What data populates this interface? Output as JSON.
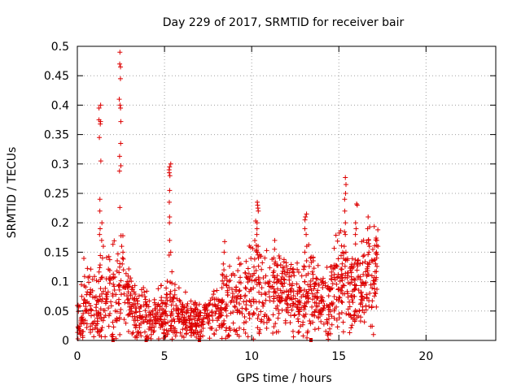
{
  "chart_data": {
    "type": "scatter",
    "title": "Day 229 of 2017, SRMTID for receiver bair",
    "xlabel": "GPS time / hours",
    "ylabel": "SRMTID / TECUs",
    "xlim": [
      0,
      24
    ],
    "ylim": [
      0,
      0.5
    ],
    "xticks": [
      0,
      5,
      10,
      15,
      20
    ],
    "xtick_labels": [
      "0",
      "5",
      "10",
      "15",
      "20"
    ],
    "yticks": [
      0,
      0.05,
      0.1,
      0.15,
      0.2,
      0.25,
      0.3,
      0.35,
      0.4,
      0.45,
      0.5
    ],
    "ytick_labels": [
      "0",
      "0.05",
      "0.1",
      "0.15",
      "0.2",
      "0.25",
      "0.3",
      "0.35",
      "0.4",
      "0.45",
      "0.5"
    ],
    "grid": true,
    "marker": "+",
    "color": "#dd0000",
    "data_end_hours": 17.2,
    "gap_markers_x": [
      2.05,
      3.95,
      7.0,
      13.4
    ],
    "envelope": [
      {
        "x": 0.0,
        "base": 0.02,
        "spread": 0.03
      },
      {
        "x": 0.3,
        "base": 0.05,
        "spread": 0.06
      },
      {
        "x": 0.6,
        "base": 0.07,
        "spread": 0.05
      },
      {
        "x": 1.0,
        "base": 0.04,
        "spread": 0.04
      },
      {
        "x": 1.3,
        "base": 0.06,
        "spread": 0.05
      },
      {
        "x": 1.7,
        "base": 0.08,
        "spread": 0.06
      },
      {
        "x": 2.2,
        "base": 0.07,
        "spread": 0.06
      },
      {
        "x": 2.7,
        "base": 0.09,
        "spread": 0.06
      },
      {
        "x": 3.2,
        "base": 0.05,
        "spread": 0.04
      },
      {
        "x": 4.0,
        "base": 0.04,
        "spread": 0.03
      },
      {
        "x": 5.0,
        "base": 0.04,
        "spread": 0.04
      },
      {
        "x": 5.5,
        "base": 0.05,
        "spread": 0.04
      },
      {
        "x": 6.5,
        "base": 0.035,
        "spread": 0.025
      },
      {
        "x": 7.5,
        "base": 0.04,
        "spread": 0.03
      },
      {
        "x": 8.3,
        "base": 0.06,
        "spread": 0.05
      },
      {
        "x": 9.5,
        "base": 0.07,
        "spread": 0.05
      },
      {
        "x": 10.3,
        "base": 0.09,
        "spread": 0.07
      },
      {
        "x": 11.0,
        "base": 0.08,
        "spread": 0.05
      },
      {
        "x": 12.0,
        "base": 0.09,
        "spread": 0.05
      },
      {
        "x": 12.7,
        "base": 0.06,
        "spread": 0.04
      },
      {
        "x": 13.3,
        "base": 0.09,
        "spread": 0.06
      },
      {
        "x": 14.0,
        "base": 0.06,
        "spread": 0.04
      },
      {
        "x": 14.8,
        "base": 0.08,
        "spread": 0.06
      },
      {
        "x": 15.5,
        "base": 0.09,
        "spread": 0.06
      },
      {
        "x": 16.2,
        "base": 0.08,
        "spread": 0.06
      },
      {
        "x": 17.2,
        "base": 0.11,
        "spread": 0.06
      }
    ],
    "spikes": [
      {
        "x": 1.3,
        "values": [
          0.4,
          0.395,
          0.375,
          0.372,
          0.368,
          0.345,
          0.305,
          0.24,
          0.22,
          0.19,
          0.18
        ]
      },
      {
        "x": 1.45,
        "values": [
          0.2,
          0.17,
          0.16,
          0.14
        ]
      },
      {
        "x": 2.45,
        "values": [
          0.49,
          0.47,
          0.465,
          0.445,
          0.41,
          0.4,
          0.395,
          0.372,
          0.335,
          0.313,
          0.297,
          0.288,
          0.226,
          0.178
        ]
      },
      {
        "x": 2.6,
        "values": [
          0.178,
          0.16,
          0.15,
          0.14,
          0.13,
          0.12
        ]
      },
      {
        "x": 5.3,
        "values": [
          0.3,
          0.295,
          0.29,
          0.285,
          0.28,
          0.255,
          0.235,
          0.21,
          0.2,
          0.17,
          0.15,
          0.145
        ]
      },
      {
        "x": 8.4,
        "values": [
          0.168,
          0.15,
          0.13,
          0.12
        ]
      },
      {
        "x": 10.35,
        "values": [
          0.235,
          0.23,
          0.225,
          0.22,
          0.2,
          0.19,
          0.18,
          0.16,
          0.15,
          0.14
        ]
      },
      {
        "x": 11.3,
        "values": [
          0.17,
          0.155,
          0.14,
          0.13
        ]
      },
      {
        "x": 13.1,
        "values": [
          0.215,
          0.21,
          0.205,
          0.19,
          0.18,
          0.16,
          0.15
        ]
      },
      {
        "x": 15.35,
        "values": [
          0.277,
          0.265,
          0.25,
          0.24,
          0.22,
          0.2,
          0.18,
          0.16,
          0.15
        ]
      },
      {
        "x": 16.0,
        "values": [
          0.232,
          0.23,
          0.2,
          0.19,
          0.18
        ]
      },
      {
        "x": 16.7,
        "values": [
          0.21,
          0.19,
          0.17,
          0.16,
          0.15
        ]
      },
      {
        "x": 17.2,
        "values": [
          0.188,
          0.17,
          0.16,
          0.15,
          0.14
        ]
      },
      {
        "x": 17.0,
        "values": [
          0.01
        ]
      }
    ],
    "n_points": 1450,
    "seed": 229
  }
}
